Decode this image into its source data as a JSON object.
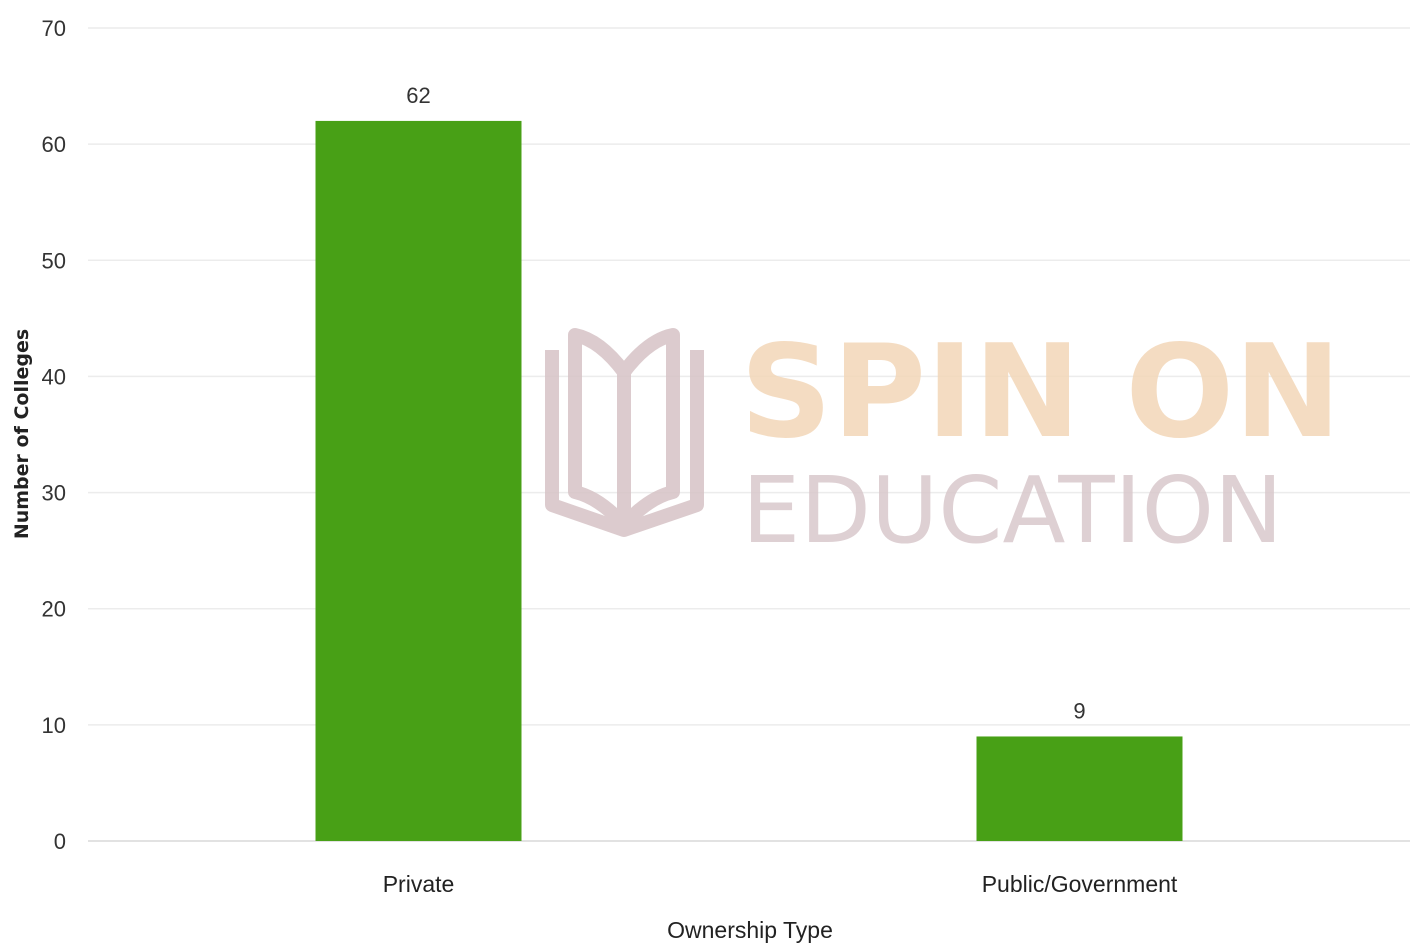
{
  "chart_data": {
    "type": "bar",
    "title": "",
    "xlabel": "Ownership Type",
    "ylabel": "Number of Colleges",
    "categories": [
      "Private",
      "Public/Government"
    ],
    "values": [
      62,
      9
    ],
    "data_labels": [
      "62",
      "9"
    ],
    "ylim": [
      0,
      70
    ],
    "yticks": [
      0,
      10,
      20,
      30,
      40,
      50,
      60,
      70
    ],
    "grid": true,
    "legend": "none",
    "bar_color": "#48a016"
  },
  "watermark": {
    "line1": "SPIN ON",
    "line2": "EDUCATION",
    "line1_color": "#f3d7b8",
    "line2_color": "#d9c8cc",
    "icon": "open-book-icon"
  }
}
